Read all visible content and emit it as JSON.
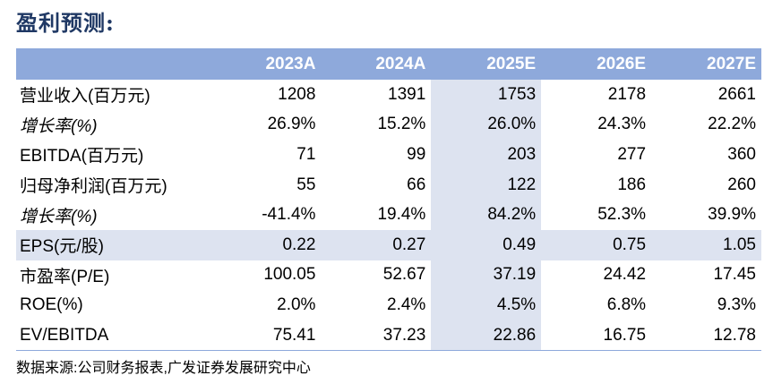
{
  "title": "盈利预测:",
  "table": {
    "columns": [
      "",
      "2023A",
      "2024A",
      "2025E",
      "2026E",
      "2027E"
    ],
    "rows": [
      {
        "label": "营业收入(百万元)",
        "italic": false,
        "shaded": false,
        "values": [
          "1208",
          "1391",
          "1753",
          "2178",
          "2661"
        ]
      },
      {
        "label": "增长率(%)",
        "italic": true,
        "shaded": false,
        "values": [
          "26.9%",
          "15.2%",
          "26.0%",
          "24.3%",
          "22.2%"
        ]
      },
      {
        "label": "EBITDA(百万元)",
        "italic": false,
        "shaded": false,
        "values": [
          "71",
          "99",
          "203",
          "277",
          "360"
        ]
      },
      {
        "label": "归母净利润(百万元)",
        "italic": false,
        "shaded": false,
        "values": [
          "55",
          "66",
          "122",
          "186",
          "260"
        ]
      },
      {
        "label": "增长率(%)",
        "italic": true,
        "shaded": false,
        "values": [
          "-41.4%",
          "19.4%",
          "84.2%",
          "52.3%",
          "39.9%"
        ]
      },
      {
        "label": "EPS(元/股)",
        "italic": false,
        "shaded": true,
        "values": [
          "0.22",
          "0.27",
          "0.49",
          "0.75",
          "1.05"
        ]
      },
      {
        "label": "市盈率(P/E)",
        "italic": false,
        "shaded": false,
        "values": [
          "100.05",
          "52.67",
          "37.19",
          "24.42",
          "17.45"
        ]
      },
      {
        "label": "ROE(%)",
        "italic": false,
        "shaded": false,
        "values": [
          "2.0%",
          "2.4%",
          "4.5%",
          "6.8%",
          "9.3%"
        ]
      },
      {
        "label": "EV/EBITDA",
        "italic": false,
        "shaded": false,
        "values": [
          "75.41",
          "37.23",
          "22.86",
          "16.75",
          "12.78"
        ]
      }
    ]
  },
  "source": "数据来源:公司财务报表,广发证券发展研究中心",
  "colors": {
    "header_bg": "#8ea9db",
    "highlight": "#dde3f0",
    "title": "#1f3864"
  }
}
